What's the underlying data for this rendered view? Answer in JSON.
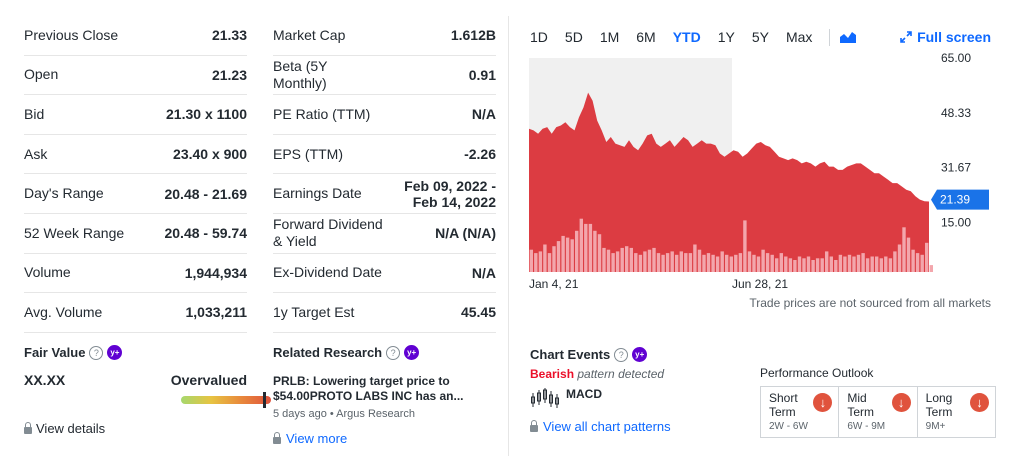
{
  "stats_left": [
    {
      "label": "Previous Close",
      "value": "21.33"
    },
    {
      "label": "Open",
      "value": "21.23"
    },
    {
      "label": "Bid",
      "value": "21.30 x 1100"
    },
    {
      "label": "Ask",
      "value": "23.40 x 900"
    },
    {
      "label": "Day's Range",
      "value": "20.48 - 21.69"
    },
    {
      "label": "52 Week Range",
      "value": "20.48 - 59.74"
    },
    {
      "label": "Volume",
      "value": "1,944,934"
    },
    {
      "label": "Avg. Volume",
      "value": "1,033,211"
    }
  ],
  "stats_right": [
    {
      "label": "Market Cap",
      "value": "1.612B"
    },
    {
      "label": "Beta (5Y Monthly)",
      "value": "0.91"
    },
    {
      "label": "PE Ratio (TTM)",
      "value": "N/A"
    },
    {
      "label": "EPS (TTM)",
      "value": "-2.26"
    },
    {
      "label": "Earnings Date",
      "value": "Feb 09, 2022 - Feb 14, 2022"
    },
    {
      "label": "Forward Dividend & Yield",
      "value": "N/A (N/A)"
    },
    {
      "label": "Ex-Dividend Date",
      "value": "N/A"
    },
    {
      "label": "1y Target Est",
      "value": "45.45"
    }
  ],
  "fair_value": {
    "title": "Fair Value",
    "value": "XX.XX",
    "verdict": "Overvalued",
    "view_label": "View details"
  },
  "research": {
    "title": "Related Research",
    "headline": "PRLB: Lowering target price to $54.00PROTO LABS INC has an...",
    "meta": "5 days ago • Argus Research",
    "more_label": "View more"
  },
  "chart_toolbar": {
    "ranges": [
      "1D",
      "5D",
      "1M",
      "6M",
      "YTD",
      "1Y",
      "5Y",
      "Max"
    ],
    "active": "YTD",
    "fullscreen_label": "Full screen"
  },
  "chart_data": {
    "type": "area",
    "x_tick_labels": [
      "Jan 4, 21",
      "Jun 28, 21"
    ],
    "y_tick_labels": [
      "65.00",
      "48.33",
      "31.67",
      "15.00"
    ],
    "ylim": [
      0,
      65
    ],
    "current_price_label": "21.39",
    "current_price": 21.39,
    "price": [
      43.5,
      43.0,
      42.0,
      43.5,
      44.0,
      42.0,
      44.0,
      44.5,
      45.5,
      44.0,
      43.0,
      47.0,
      50.0,
      54.5,
      52.0,
      46.0,
      43.0,
      39.5,
      41.0,
      39.0,
      38.5,
      38.0,
      40.0,
      38.0,
      37.0,
      39.0,
      41.5,
      42.0,
      39.0,
      38.0,
      39.0,
      40.0,
      38.0,
      39.5,
      41.0,
      40.0,
      38.0,
      39.0,
      40.0,
      39.0,
      39.0,
      38.5,
      36.0,
      35.0,
      36.0,
      37.0,
      36.5,
      35.0,
      36.0,
      37.5,
      39.0,
      39.5,
      38.5,
      38.0,
      36.5,
      35.0,
      34.5,
      34.0,
      34.5,
      34.0,
      33.0,
      33.5,
      33.0,
      32.0,
      33.0,
      33.5,
      32.0,
      32.0,
      31.0,
      31.0,
      32.0,
      32.5,
      33.0,
      33.0,
      32.0,
      31.0,
      30.0,
      30.0,
      29.0,
      28.0,
      27.0,
      27.0,
      26.0,
      25.0,
      24.5,
      23.0,
      22.0,
      21.5,
      21.4
    ],
    "volume": [
      6.5,
      5.5,
      6.0,
      8.0,
      5.5,
      7.5,
      9.0,
      10.5,
      10.0,
      9.5,
      12.0,
      15.5,
      14.0,
      14.0,
      12.0,
      11.0,
      7.0,
      6.5,
      5.5,
      6.0,
      7.0,
      7.5,
      7.0,
      5.5,
      5.0,
      6.0,
      6.5,
      7.0,
      5.5,
      5.0,
      5.5,
      6.0,
      5.0,
      6.0,
      5.5,
      5.5,
      8.0,
      6.5,
      5.0,
      5.5,
      5.0,
      4.5,
      6.0,
      5.0,
      4.5,
      5.0,
      5.5,
      15.0,
      6.0,
      5.0,
      4.5,
      6.5,
      5.5,
      5.0,
      4.0,
      5.5,
      4.5,
      4.0,
      3.5,
      4.5,
      4.0,
      4.5,
      3.5,
      4.0,
      4.0,
      6.0,
      4.5,
      3.5,
      5.0,
      4.5,
      5.0,
      4.5,
      5.0,
      5.5,
      4.0,
      4.5,
      4.5,
      4.0,
      4.5,
      4.0,
      6.0,
      8.0,
      13.0,
      10.0,
      6.5,
      5.5,
      5.0,
      8.5,
      2.0
    ],
    "note": "Trade prices are not sourced from all markets"
  },
  "chart_events": {
    "title": "Chart Events",
    "bearish_label": "Bearish",
    "pattern_text": "pattern detected",
    "pattern_name": "MACD",
    "view_label": "View all chart patterns"
  },
  "performance": {
    "title": "Performance Outlook",
    "items": [
      {
        "term": "Short Term",
        "span": "2W - 6W"
      },
      {
        "term": "Mid Term",
        "span": "6W - 9M"
      },
      {
        "term": "Long Term",
        "span": "9M+"
      }
    ]
  },
  "colors": {
    "accent": "#0f69ff",
    "price_area": "#dc3c42",
    "volume_bar": "#f3a6ac",
    "bear": "#eb0f29",
    "tag": "#1a73e8"
  }
}
